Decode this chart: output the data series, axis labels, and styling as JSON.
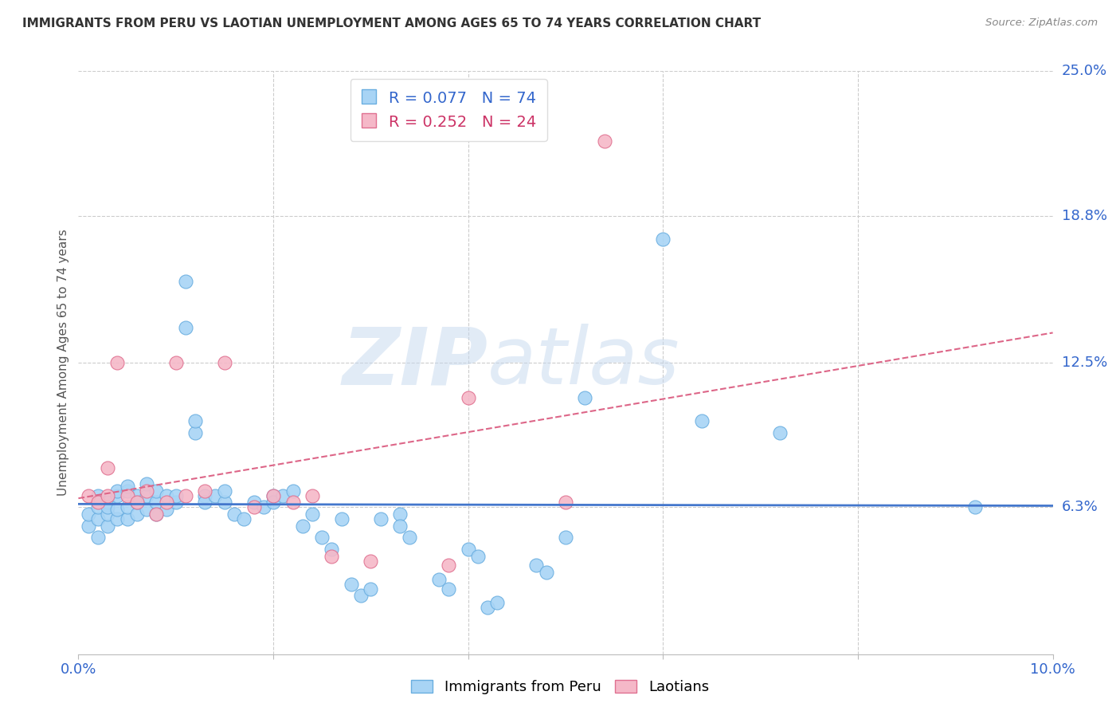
{
  "title": "IMMIGRANTS FROM PERU VS LAOTIAN UNEMPLOYMENT AMONG AGES 65 TO 74 YEARS CORRELATION CHART",
  "source": "Source: ZipAtlas.com",
  "ylabel": "Unemployment Among Ages 65 to 74 years",
  "xlim": [
    0.0,
    0.1
  ],
  "ylim": [
    0.0,
    0.25
  ],
  "xtick_positions": [
    0.0,
    0.02,
    0.04,
    0.06,
    0.08,
    0.1
  ],
  "xticklabels": [
    "0.0%",
    "",
    "",
    "",
    "",
    "10.0%"
  ],
  "ytick_right_labels": [
    "25.0%",
    "18.8%",
    "12.5%",
    "6.3%"
  ],
  "ytick_right_values": [
    0.25,
    0.188,
    0.125,
    0.063
  ],
  "grid_color": "#cccccc",
  "background_color": "#ffffff",
  "peru_color": "#a8d4f5",
  "peru_edge_color": "#6aaee0",
  "laotian_color": "#f5b8c8",
  "laotian_edge_color": "#e07090",
  "peru_R": 0.077,
  "peru_N": 74,
  "laotian_R": 0.252,
  "laotian_N": 24,
  "trend_peru_color": "#4477cc",
  "trend_laotian_color": "#dd6688",
  "peru_x": [
    0.001,
    0.001,
    0.002,
    0.002,
    0.002,
    0.002,
    0.003,
    0.003,
    0.003,
    0.003,
    0.004,
    0.004,
    0.004,
    0.004,
    0.005,
    0.005,
    0.005,
    0.005,
    0.006,
    0.006,
    0.006,
    0.007,
    0.007,
    0.007,
    0.008,
    0.008,
    0.008,
    0.009,
    0.009,
    0.01,
    0.01,
    0.011,
    0.011,
    0.012,
    0.012,
    0.013,
    0.013,
    0.014,
    0.015,
    0.015,
    0.016,
    0.017,
    0.018,
    0.019,
    0.02,
    0.02,
    0.021,
    0.022,
    0.023,
    0.024,
    0.025,
    0.026,
    0.027,
    0.028,
    0.029,
    0.03,
    0.031,
    0.033,
    0.033,
    0.034,
    0.037,
    0.038,
    0.04,
    0.041,
    0.042,
    0.043,
    0.047,
    0.048,
    0.05,
    0.052,
    0.06,
    0.064,
    0.072,
    0.092
  ],
  "peru_y": [
    0.055,
    0.06,
    0.058,
    0.063,
    0.068,
    0.05,
    0.055,
    0.06,
    0.065,
    0.063,
    0.058,
    0.062,
    0.068,
    0.07,
    0.058,
    0.063,
    0.07,
    0.072,
    0.06,
    0.065,
    0.068,
    0.062,
    0.068,
    0.073,
    0.06,
    0.065,
    0.07,
    0.068,
    0.062,
    0.065,
    0.068,
    0.16,
    0.14,
    0.095,
    0.1,
    0.068,
    0.065,
    0.068,
    0.065,
    0.07,
    0.06,
    0.058,
    0.065,
    0.063,
    0.068,
    0.065,
    0.068,
    0.07,
    0.055,
    0.06,
    0.05,
    0.045,
    0.058,
    0.03,
    0.025,
    0.028,
    0.058,
    0.06,
    0.055,
    0.05,
    0.032,
    0.028,
    0.045,
    0.042,
    0.02,
    0.022,
    0.038,
    0.035,
    0.05,
    0.11,
    0.178,
    0.1,
    0.095,
    0.063
  ],
  "laotian_x": [
    0.001,
    0.002,
    0.003,
    0.003,
    0.004,
    0.005,
    0.006,
    0.007,
    0.008,
    0.009,
    0.01,
    0.011,
    0.013,
    0.015,
    0.018,
    0.02,
    0.022,
    0.024,
    0.026,
    0.03,
    0.038,
    0.04,
    0.05,
    0.054
  ],
  "laotian_y": [
    0.068,
    0.065,
    0.068,
    0.08,
    0.125,
    0.068,
    0.065,
    0.07,
    0.06,
    0.065,
    0.125,
    0.068,
    0.07,
    0.125,
    0.063,
    0.068,
    0.065,
    0.068,
    0.042,
    0.04,
    0.038,
    0.11,
    0.065,
    0.22
  ]
}
